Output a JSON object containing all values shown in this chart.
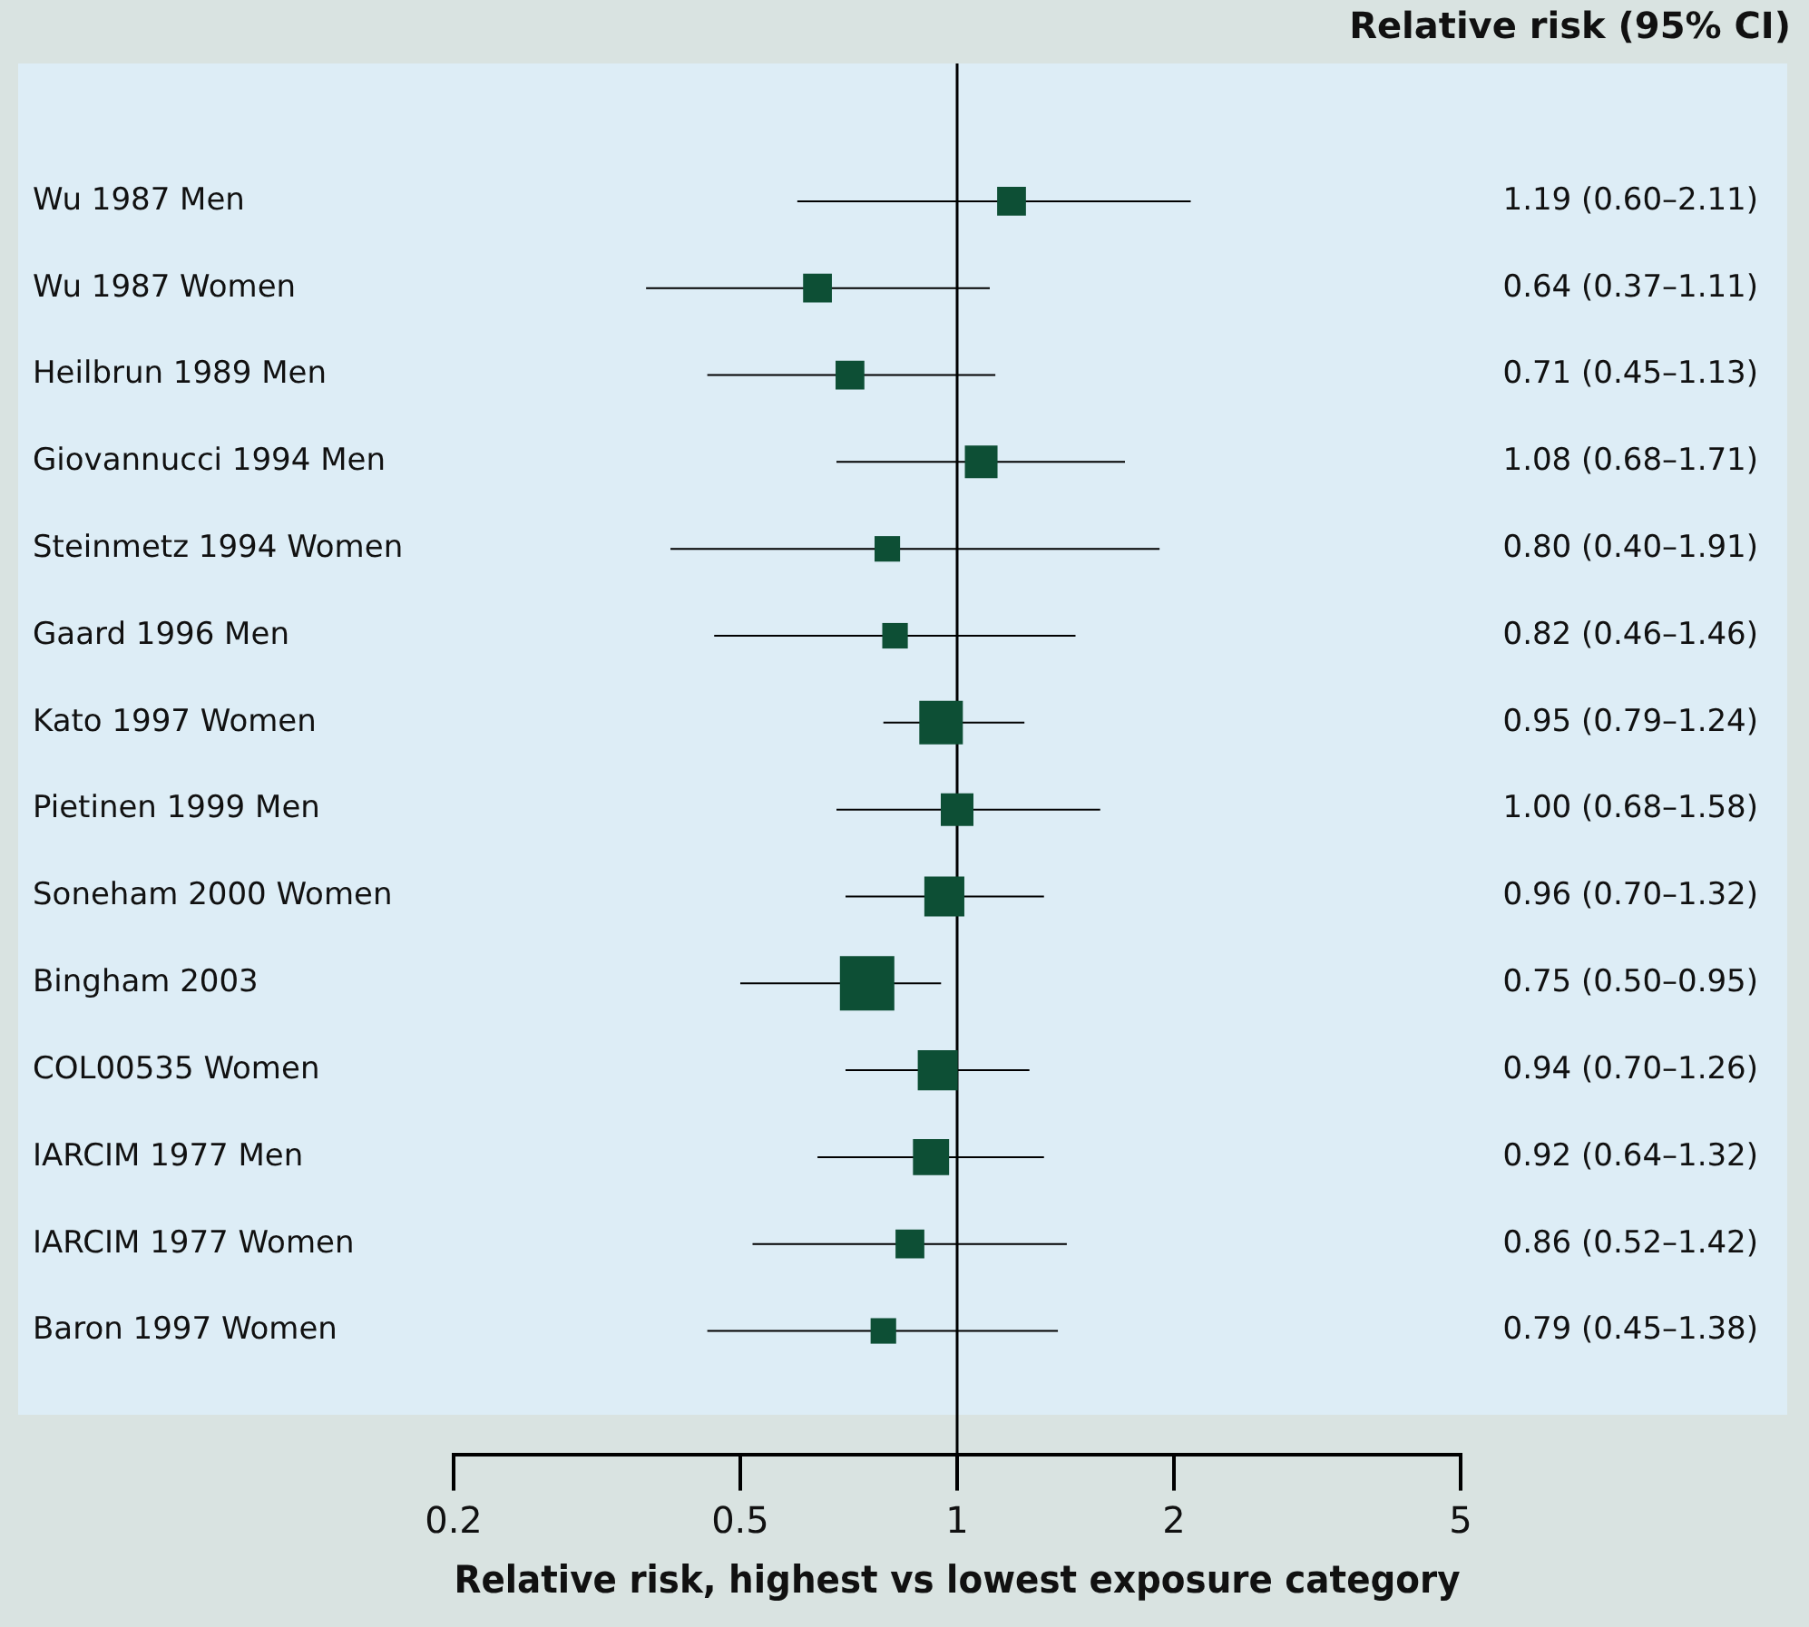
{
  "chart_data": {
    "type": "bubble",
    "orientation": "horizontal",
    "marker": "square",
    "log": "x",
    "grid": false,
    "xlabel": "Relative risk, highest vs lowest exposure category",
    "annotations": [
      "Relative risk (95% CI)"
    ],
    "categories": [
      "Wu 1987 Men",
      "Wu 1987 Women",
      "Heilbrun 1989 Men",
      "Giovannucci 1994 Men",
      "Steinmetz 1994 Women",
      "Gaard 1996 Men",
      "Kato 1997 Women",
      "Pietinen 1999 Men",
      "Soneham 2000 Women",
      "Bingham 2003",
      "COL00535 Women",
      "IARCIM 1977 Men",
      "IARCIM 1977 Women",
      "Baron 1997 Women"
    ],
    "values": [
      1.19,
      0.64,
      0.71,
      1.08,
      0.8,
      0.82,
      0.95,
      1.0,
      0.96,
      0.75,
      0.94,
      0.92,
      0.86,
      0.79
    ],
    "errors": [
      [
        0.6,
        2.11
      ],
      [
        0.37,
        1.11
      ],
      [
        0.45,
        1.13
      ],
      [
        0.68,
        1.71
      ],
      [
        0.4,
        1.91
      ],
      [
        0.46,
        1.46
      ],
      [
        0.79,
        1.24
      ],
      [
        0.68,
        1.58
      ],
      [
        0.7,
        1.32
      ],
      [
        0.5,
        0.95
      ],
      [
        0.7,
        1.26
      ],
      [
        0.64,
        1.32
      ],
      [
        0.52,
        1.42
      ],
      [
        0.45,
        1.38
      ]
    ],
    "sizes": [
      0.28,
      0.28,
      0.28,
      0.36,
      0.22,
      0.22,
      0.64,
      0.36,
      0.54,
      1,
      0.54,
      0.44,
      0.28,
      0.22
    ],
    "value_labels": [
      "1.19 (0.60–2.11)",
      "0.64 (0.37–1.11)",
      "0.71 (0.45–1.13)",
      "1.08 (0.68–1.71)",
      "0.80 (0.40–1.91)",
      "0.82 (0.46–1.46)",
      "0.95 (0.79–1.24)",
      "1.00 (0.68–1.58)",
      "0.96 (0.70–1.32)",
      "0.75 (0.50–0.95)",
      "0.94 (0.70–1.26)",
      "0.92 (0.64–1.32)",
      "0.86 (0.52–1.42)",
      "0.79 (0.45–1.38)"
    ],
    "color": "#0d4f35",
    "xlim": [
      0.2,
      5
    ],
    "xticks": [
      0.2,
      0.5,
      1,
      2,
      5
    ],
    "ref_lines": [
      {
        "axis": "x",
        "value": 1,
        "color": "#000000"
      }
    ]
  }
}
